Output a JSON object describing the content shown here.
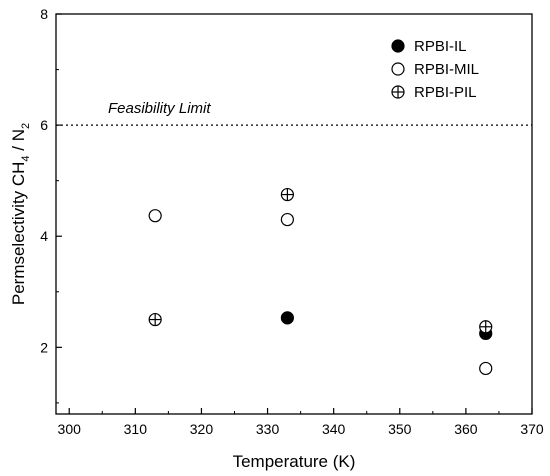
{
  "chart_data": {
    "type": "scatter",
    "title": "",
    "xlabel": "Temperature (K)",
    "ylabel_parts": {
      "main": "Permselectivity CH",
      "sub1": "4",
      "mid": " / N",
      "sub2": "2"
    },
    "xlim": [
      298,
      370
    ],
    "ylim": [
      0.8,
      8
    ],
    "xticks": [
      300,
      310,
      320,
      330,
      340,
      350,
      360,
      370
    ],
    "yticks": [
      2,
      4,
      6,
      8
    ],
    "grid": false,
    "legend_position": "top-right",
    "reference_line": {
      "label": "Feasibility Limit",
      "y": 6,
      "style": "dotted"
    },
    "series": [
      {
        "name": "RPBI-IL",
        "marker": "filled-circle",
        "x": [
          333,
          363
        ],
        "y": [
          2.53,
          2.25
        ]
      },
      {
        "name": "RPBI-MIL",
        "marker": "open-circle",
        "x": [
          313,
          333,
          363
        ],
        "y": [
          4.37,
          4.3,
          1.62
        ]
      },
      {
        "name": "RPBI-PIL",
        "marker": "crossed-circle",
        "x": [
          313,
          333,
          363
        ],
        "y": [
          2.5,
          4.75,
          2.37
        ]
      }
    ]
  }
}
